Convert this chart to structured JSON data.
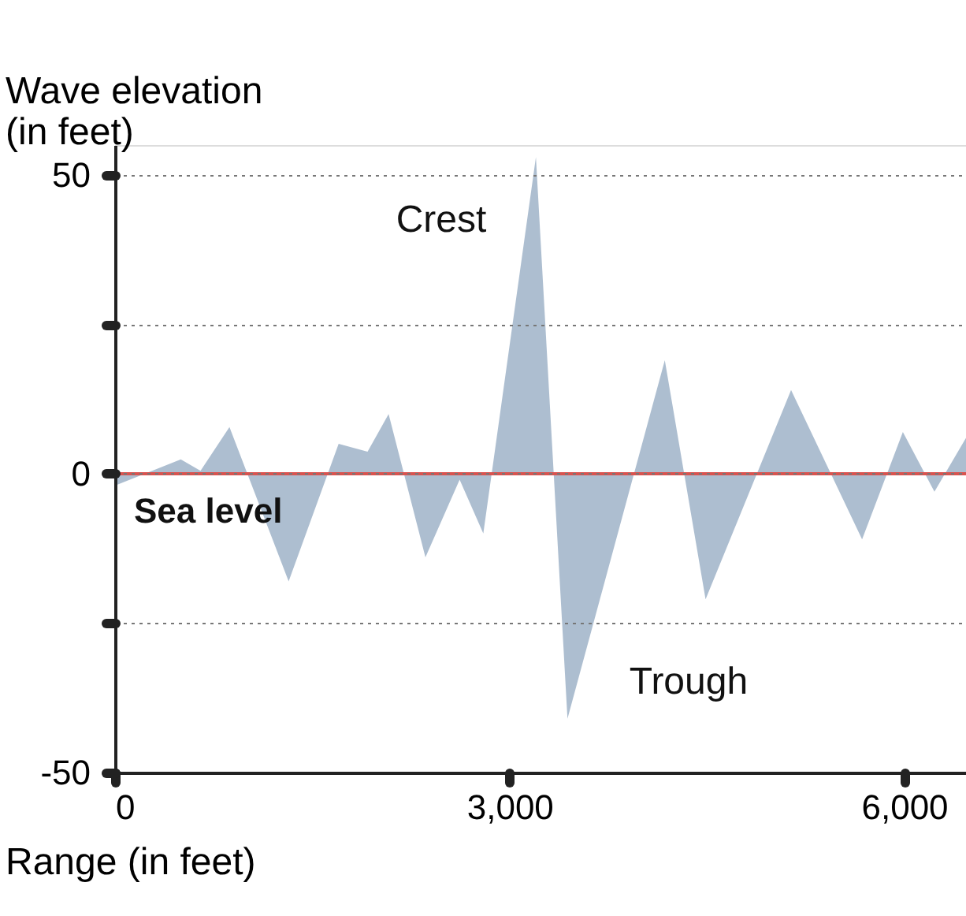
{
  "chart_data": {
    "type": "area",
    "ylabel": "Wave elevation\n(in feet)",
    "xlabel": "Range (in feet)",
    "x": [
      0,
      500,
      650,
      870,
      1320,
      1700,
      1920,
      2080,
      2360,
      2620,
      2800,
      3200,
      3440,
      4180,
      4490,
      5140,
      5680,
      5990,
      6230,
      6470
    ],
    "series": [
      {
        "color": "#9fb3c8",
        "values": [
          -2,
          2.4,
          0.5,
          7.8,
          -18,
          5,
          3.7,
          10,
          -14,
          -1,
          -10,
          53,
          -41,
          19,
          -21,
          14,
          -11,
          7,
          -3,
          6
        ]
      }
    ],
    "xlim": [
      0,
      6470
    ],
    "xticks": [
      0,
      {
        "value": 3000,
        "label": "3,000"
      },
      {
        "value": 6000,
        "label": "6,000"
      }
    ],
    "ylim": [
      -50,
      55
    ],
    "yticks": [
      -50,
      {
        "value": -25,
        "label": null
      },
      0,
      {
        "value": 25,
        "label": null
      },
      50
    ],
    "grid": "y",
    "ref_lines": [
      {
        "axis": "y",
        "value": 0,
        "label": "Sea level",
        "color": "#d9534f"
      }
    ],
    "annotations": [
      "Crest",
      "Trough"
    ]
  }
}
